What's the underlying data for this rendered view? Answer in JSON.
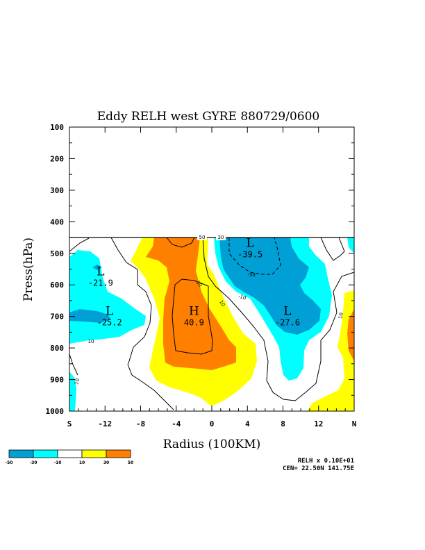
{
  "colors": {
    "lt_neg30": "#009fd6",
    "neg30_neg10": "#00ffff",
    "neg10_10": "#ffffff",
    "10_30": "#ffff00",
    "gt_30": "#ff7f00",
    "line": "#000000"
  },
  "chart_data": {
    "type": "heatmap",
    "title": "Eddy RELH west GYRE 880729/0600",
    "xlabel": "Radius (100KM)",
    "ylabel": "Press(hPa)",
    "xlim": [
      -16,
      16
    ],
    "ylim": [
      1000,
      100
    ],
    "x_ticks": [
      {
        "value": -16,
        "label": "S"
      },
      {
        "value": -12,
        "label": "-12"
      },
      {
        "value": -8,
        "label": "-8"
      },
      {
        "value": -4,
        "label": "-4"
      },
      {
        "value": 0,
        "label": "0"
      },
      {
        "value": 4,
        "label": "4"
      },
      {
        "value": 8,
        "label": "8"
      },
      {
        "value": 12,
        "label": "12"
      },
      {
        "value": 16,
        "label": "N"
      }
    ],
    "y_ticks": [
      {
        "value": 100,
        "label": "100"
      },
      {
        "value": 200,
        "label": "200"
      },
      {
        "value": 300,
        "label": "300"
      },
      {
        "value": 400,
        "label": "400"
      },
      {
        "value": 500,
        "label": "500"
      },
      {
        "value": 600,
        "label": "600"
      },
      {
        "value": 700,
        "label": "700"
      },
      {
        "value": 800,
        "label": "800"
      },
      {
        "value": 900,
        "label": "900"
      },
      {
        "value": 1000,
        "label": "1000"
      }
    ],
    "data_top_pressure": 450,
    "extrema": [
      {
        "type": "L",
        "value": "-21.9",
        "x": -12.5,
        "p": 570
      },
      {
        "type": "L",
        "value": "-25.2",
        "x": -11.5,
        "p": 695
      },
      {
        "type": "H",
        "value": "40.9",
        "x": -2.0,
        "p": 695
      },
      {
        "type": "L",
        "value": "-39.5",
        "x": 4.3,
        "p": 480
      },
      {
        "type": "L",
        "value": "-27.6",
        "x": 8.5,
        "p": 695
      }
    ],
    "contour_labels": [
      "50",
      "30",
      "30",
      "10",
      "-30",
      "-10",
      "10",
      "10",
      "10"
    ],
    "legend": {
      "boundaries": [
        "-50",
        "-30",
        "-10",
        "10",
        "30",
        "50"
      ],
      "colors": [
        "#009fd6",
        "#00ffff",
        "#ffffff",
        "#ffff00",
        "#ff7f00"
      ]
    },
    "footnote_line1": "RELH x  0.10E+01",
    "footnote_line2": "CEN= 22.50N  141.75E"
  }
}
